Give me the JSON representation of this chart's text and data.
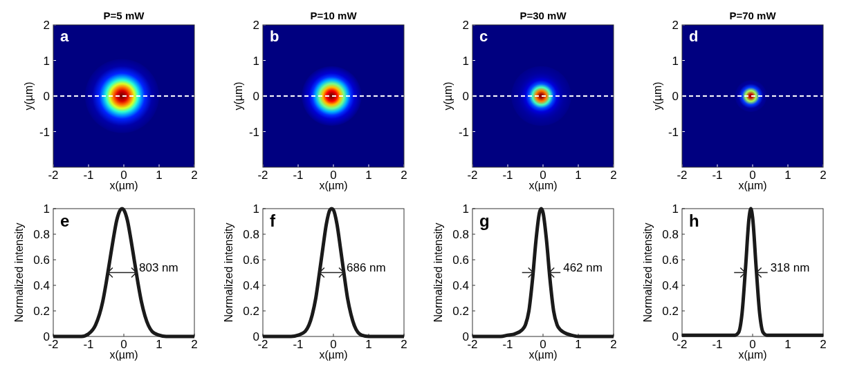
{
  "chart_data": [
    {
      "type": "heatmap",
      "title": "P=5 mW",
      "xlabel": "x(µm)",
      "ylabel": "y(µm)",
      "xlim": [
        -2,
        2
      ],
      "ylim": [
        -2,
        2
      ],
      "xticks": [
        -2,
        -1,
        0,
        1,
        2
      ],
      "yticks": [
        -1,
        0,
        1,
        2
      ],
      "annotations": [
        "a"
      ],
      "ref_lines": [
        {
          "axis": "y",
          "value": 0,
          "color": "#ffffff",
          "line_style": "dashed"
        }
      ]
    },
    {
      "type": "heatmap",
      "title": "P=10 mW",
      "xlabel": "x(µm)",
      "ylabel": "y(µm)",
      "xlim": [
        -2,
        2
      ],
      "ylim": [
        -2,
        2
      ],
      "xticks": [
        -2,
        -1,
        0,
        1,
        2
      ],
      "yticks": [
        -1,
        0,
        1,
        2
      ],
      "annotations": [
        "b"
      ],
      "ref_lines": [
        {
          "axis": "y",
          "value": 0,
          "color": "#ffffff",
          "line_style": "dashed"
        }
      ]
    },
    {
      "type": "heatmap",
      "title": "P=30 mW",
      "xlabel": "x(µm)",
      "ylabel": "y(µm)",
      "xlim": [
        -2,
        2
      ],
      "ylim": [
        -2,
        2
      ],
      "xticks": [
        -2,
        -1,
        0,
        1,
        2
      ],
      "yticks": [
        -1,
        0,
        1,
        2
      ],
      "annotations": [
        "c"
      ],
      "ref_lines": [
        {
          "axis": "y",
          "value": 0,
          "color": "#ffffff",
          "line_style": "dashed"
        }
      ]
    },
    {
      "type": "heatmap",
      "title": "P=70 mW",
      "xlabel": "x(µm)",
      "ylabel": "y(µm)",
      "xlim": [
        -2,
        2
      ],
      "ylim": [
        -2,
        2
      ],
      "xticks": [
        -2,
        -1,
        0,
        1,
        2
      ],
      "yticks": [
        -1,
        0,
        1,
        2
      ],
      "annotations": [
        "d"
      ],
      "ref_lines": [
        {
          "axis": "y",
          "value": 0,
          "color": "#ffffff",
          "line_style": "dashed"
        }
      ]
    },
    {
      "type": "line",
      "xlabel": "x(µm)",
      "ylabel": "Normalized intensity",
      "xlim": [
        -2,
        2
      ],
      "ylim": [
        0,
        1
      ],
      "xticks": [
        -2,
        -1,
        0,
        1,
        2
      ],
      "yticks": [
        0,
        0.2,
        0.4,
        0.6,
        0.8,
        1
      ],
      "annotations": [
        "e",
        "803 nm"
      ],
      "x": [
        -2,
        -1.5,
        -1.2,
        -1,
        -0.8,
        -0.6,
        -0.5,
        -0.4,
        -0.3,
        -0.2,
        -0.1,
        -0.05,
        0,
        0.1,
        0.2,
        0.3,
        0.4,
        0.5,
        0.6,
        0.8,
        1,
        1.2,
        1.5,
        2
      ],
      "series": [
        {
          "color": "#1a1a1a",
          "values": [
            0,
            0,
            0,
            0.02,
            0.09,
            0.27,
            0.42,
            0.59,
            0.76,
            0.91,
            0.99,
            1,
            0.99,
            0.91,
            0.76,
            0.59,
            0.42,
            0.27,
            0.16,
            0.04,
            0.01,
            0,
            0,
            0
          ]
        }
      ]
    },
    {
      "type": "line",
      "xlabel": "x(µm)",
      "ylabel": "Normalized intensity",
      "xlim": [
        -2,
        2
      ],
      "ylim": [
        0,
        1
      ],
      "xticks": [
        -2,
        -1,
        0,
        1,
        2
      ],
      "yticks": [
        0,
        0.2,
        0.4,
        0.6,
        0.8,
        1
      ],
      "annotations": [
        "f",
        "686 nm"
      ],
      "x": [
        -2,
        -1.5,
        -1.2,
        -1,
        -0.8,
        -0.6,
        -0.5,
        -0.4,
        -0.3,
        -0.2,
        -0.1,
        -0.05,
        0,
        0.1,
        0.2,
        0.3,
        0.4,
        0.5,
        0.6,
        0.8,
        1,
        1.2,
        1.5,
        2
      ],
      "series": [
        {
          "color": "#1a1a1a",
          "values": [
            0,
            0,
            0,
            0.01,
            0.04,
            0.17,
            0.3,
            0.49,
            0.69,
            0.88,
            0.99,
            1,
            0.99,
            0.88,
            0.69,
            0.49,
            0.3,
            0.17,
            0.08,
            0.01,
            0,
            0,
            0,
            0
          ]
        }
      ]
    },
    {
      "type": "line",
      "xlabel": "x(µm)",
      "ylabel": "Normalized intensity",
      "xlim": [
        -2,
        2
      ],
      "ylim": [
        0,
        1
      ],
      "xticks": [
        -2,
        -1,
        0,
        1,
        2
      ],
      "yticks": [
        0,
        0.2,
        0.4,
        0.6,
        0.8,
        1
      ],
      "annotations": [
        "g",
        "462 nm"
      ],
      "x": [
        -2,
        -1.5,
        -1.2,
        -1,
        -0.8,
        -0.6,
        -0.5,
        -0.4,
        -0.3,
        -0.2,
        -0.1,
        -0.05,
        0,
        0.1,
        0.2,
        0.3,
        0.4,
        0.5,
        0.6,
        0.8,
        1,
        1.2,
        1.5,
        2
      ],
      "series": [
        {
          "color": "#1a1a1a",
          "values": [
            0,
            0,
            0,
            0.01,
            0.02,
            0.05,
            0.09,
            0.2,
            0.44,
            0.75,
            0.97,
            1,
            0.97,
            0.75,
            0.44,
            0.2,
            0.09,
            0.05,
            0.03,
            0.01,
            0,
            0,
            0,
            0
          ]
        }
      ]
    },
    {
      "type": "line",
      "xlabel": "x(µm)",
      "ylabel": "Normalized intensity",
      "xlim": [
        -2,
        2
      ],
      "ylim": [
        0,
        1
      ],
      "xticks": [
        -2,
        -1,
        0,
        1,
        2
      ],
      "yticks": [
        0,
        0.2,
        0.4,
        0.6,
        0.8,
        1
      ],
      "annotations": [
        "h",
        "318 nm"
      ],
      "x": [
        -2,
        -1.5,
        -1.2,
        -1,
        -0.8,
        -0.6,
        -0.5,
        -0.4,
        -0.3,
        -0.2,
        -0.1,
        -0.05,
        0,
        0.1,
        0.2,
        0.3,
        0.4,
        0.5,
        0.6,
        0.8,
        1,
        1.2,
        1.5,
        2
      ],
      "series": [
        {
          "color": "#1a1a1a",
          "values": [
            0.01,
            0.01,
            0.01,
            0.01,
            0.01,
            0.01,
            0.01,
            0.03,
            0.18,
            0.54,
            0.93,
            1,
            0.93,
            0.54,
            0.18,
            0.03,
            0.01,
            0.01,
            0.01,
            0.01,
            0.01,
            0.01,
            0.01,
            0.01
          ]
        }
      ]
    }
  ]
}
